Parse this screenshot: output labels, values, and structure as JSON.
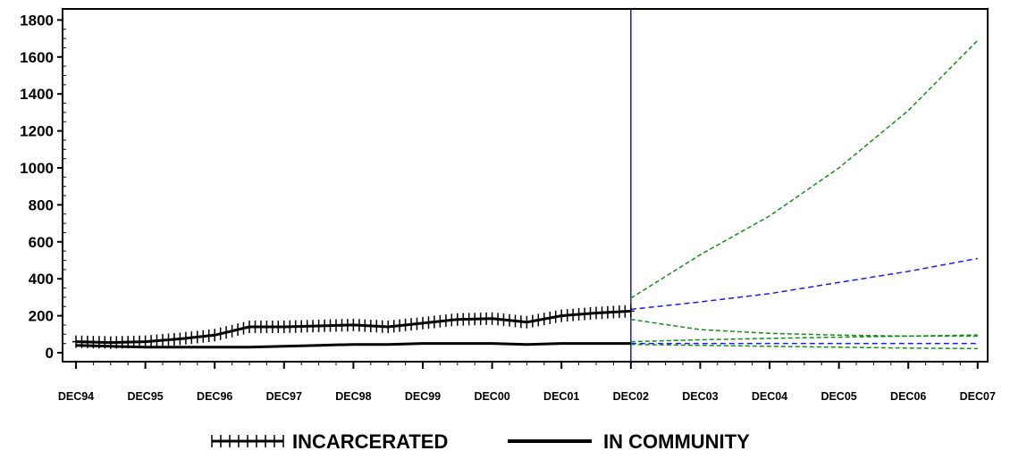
{
  "chart_data": {
    "type": "line",
    "xlabel": "",
    "ylabel": "",
    "ylim": [
      0,
      1800
    ],
    "xlim": [
      "DEC94",
      "DEC07"
    ],
    "x_ticks": [
      "DEC94",
      "DEC95",
      "DEC96",
      "DEC97",
      "DEC98",
      "DEC99",
      "DEC00",
      "DEC01",
      "DEC02",
      "DEC03",
      "DEC04",
      "DEC05",
      "DEC06",
      "DEC07"
    ],
    "y_ticks": [
      0,
      200,
      400,
      600,
      800,
      1000,
      1200,
      1400,
      1600,
      1800
    ],
    "forecast_start": "DEC02",
    "legend_position": "bottom",
    "colors": {
      "history": "#000000",
      "forecast_incarcerated": "#1a1aff",
      "forecast_interval": "#1a8a1a",
      "divider": "#1a1ad0"
    },
    "series": [
      {
        "name": "INCARCERATED",
        "marker": "plus",
        "x": [
          "DEC94",
          "JUN95",
          "DEC95",
          "JUN96",
          "DEC96",
          "JUN97",
          "DEC97",
          "JUN98",
          "DEC98",
          "JUN99",
          "DEC99",
          "JUN00",
          "DEC00",
          "JUN01",
          "DEC01",
          "JUN02",
          "DEC02"
        ],
        "y": [
          60,
          55,
          60,
          75,
          95,
          140,
          140,
          145,
          150,
          140,
          160,
          180,
          185,
          165,
          200,
          215,
          225
        ]
      },
      {
        "name": "IN COMMUNITY",
        "x": [
          "DEC94",
          "JUN95",
          "DEC95",
          "JUN96",
          "DEC96",
          "JUN97",
          "DEC97",
          "JUN98",
          "DEC98",
          "JUN99",
          "DEC99",
          "JUN00",
          "DEC00",
          "JUN01",
          "DEC01",
          "JUN02",
          "DEC02"
        ],
        "y": [
          40,
          35,
          30,
          30,
          30,
          30,
          35,
          40,
          45,
          45,
          50,
          50,
          50,
          45,
          50,
          50,
          50
        ]
      },
      {
        "role": "forecast-upper",
        "x": [
          "DEC02",
          "DEC03",
          "DEC04",
          "DEC05",
          "DEC06",
          "DEC07"
        ],
        "y": [
          295,
          530,
          740,
          1000,
          1310,
          1690
        ]
      },
      {
        "role": "forecast",
        "x": [
          "DEC02",
          "DEC03",
          "DEC04",
          "DEC05",
          "DEC06",
          "DEC07"
        ],
        "y": [
          235,
          275,
          320,
          380,
          440,
          510
        ]
      },
      {
        "role": "forecast-lower",
        "x": [
          "DEC02",
          "DEC03",
          "DEC04",
          "DEC05",
          "DEC06",
          "DEC07"
        ],
        "y": [
          180,
          125,
          105,
          95,
          90,
          90
        ]
      },
      {
        "role": "forecast-upper",
        "x": [
          "DEC02",
          "DEC03",
          "DEC04",
          "DEC05",
          "DEC06",
          "DEC07"
        ],
        "y": [
          60,
          70,
          78,
          84,
          90,
          96
        ]
      },
      {
        "role": "forecast",
        "x": [
          "DEC02",
          "DEC03",
          "DEC04",
          "DEC05",
          "DEC06",
          "DEC07"
        ],
        "y": [
          50,
          50,
          50,
          50,
          50,
          50
        ]
      },
      {
        "role": "forecast-lower",
        "x": [
          "DEC02",
          "DEC03",
          "DEC04",
          "DEC05",
          "DEC06",
          "DEC07"
        ],
        "y": [
          45,
          40,
          35,
          30,
          25,
          22
        ]
      }
    ]
  }
}
